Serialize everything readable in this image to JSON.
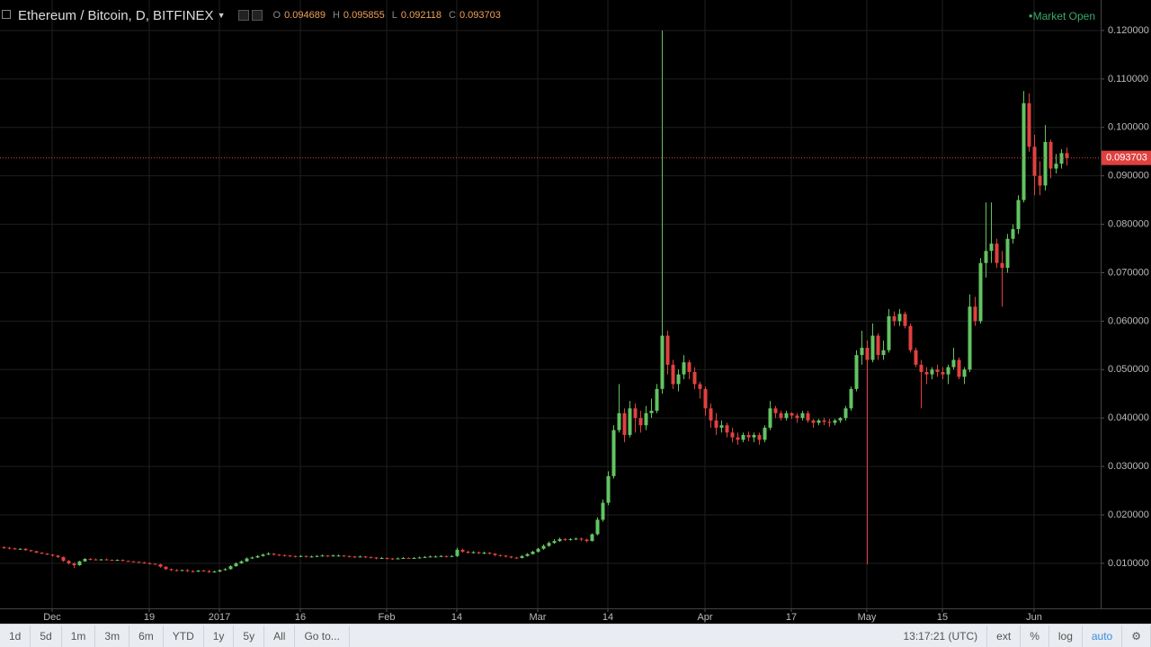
{
  "chart_data": {
    "type": "candlestick",
    "title": "Ethereum / Bitcoin, D, BITFINEX",
    "ohlc_labels": [
      "O",
      "H",
      "L",
      "C"
    ],
    "status": "Market Open",
    "up_color": "#62c462",
    "down_color": "#e0413f",
    "last_price_color": "#e0413f",
    "grid": true,
    "ylim": [
      0.0007,
      0.1263
    ],
    "yticks": [
      {
        "value": 0.01,
        "label": "0.010000"
      },
      {
        "value": 0.02,
        "label": "0.020000"
      },
      {
        "value": 0.03,
        "label": "0.030000"
      },
      {
        "value": 0.04,
        "label": "0.040000"
      },
      {
        "value": 0.05,
        "label": "0.050000"
      },
      {
        "value": 0.06,
        "label": "0.060000"
      },
      {
        "value": 0.07,
        "label": "0.070000"
      },
      {
        "value": 0.08,
        "label": "0.080000"
      },
      {
        "value": 0.09,
        "label": "0.090000"
      },
      {
        "value": 0.1,
        "label": "0.100000"
      },
      {
        "value": 0.11,
        "label": "0.110000"
      },
      {
        "value": 0.12,
        "label": "0.120000"
      }
    ],
    "categories": [
      null,
      null,
      null,
      null,
      null,
      null,
      null,
      null,
      null,
      "Dec",
      null,
      null,
      null,
      null,
      null,
      null,
      null,
      null,
      null,
      null,
      null,
      null,
      null,
      null,
      null,
      null,
      null,
      "19",
      null,
      null,
      null,
      null,
      null,
      null,
      null,
      null,
      null,
      null,
      null,
      null,
      "2017",
      null,
      null,
      null,
      null,
      null,
      null,
      null,
      null,
      null,
      null,
      null,
      null,
      null,
      null,
      "16",
      null,
      null,
      null,
      null,
      null,
      null,
      null,
      null,
      null,
      null,
      null,
      null,
      null,
      null,
      null,
      "Feb",
      null,
      null,
      null,
      null,
      null,
      null,
      null,
      null,
      null,
      null,
      null,
      null,
      "14",
      null,
      null,
      null,
      null,
      null,
      null,
      null,
      null,
      null,
      null,
      null,
      null,
      null,
      null,
      "Mar",
      null,
      null,
      null,
      null,
      null,
      null,
      null,
      null,
      null,
      null,
      null,
      null,
      "14",
      null,
      null,
      null,
      null,
      null,
      null,
      null,
      null,
      null,
      null,
      null,
      null,
      null,
      null,
      null,
      null,
      null,
      "Apr",
      null,
      null,
      null,
      null,
      null,
      null,
      null,
      null,
      null,
      null,
      null,
      null,
      null,
      null,
      null,
      "17",
      null,
      null,
      null,
      null,
      null,
      null,
      null,
      null,
      null,
      null,
      null,
      null,
      null,
      "May",
      null,
      null,
      null,
      null,
      null,
      null,
      null,
      null,
      null,
      null,
      null,
      null,
      null,
      "15",
      null,
      null,
      null,
      null,
      null,
      null,
      null,
      null,
      null,
      null,
      null,
      null,
      null,
      null,
      null,
      null,
      "Jun",
      null,
      null,
      null,
      null,
      null,
      null
    ],
    "open": [
      0.0133,
      0.0132,
      0.0131,
      0.0129,
      0.013,
      0.0127,
      0.0125,
      0.0122,
      0.012,
      0.0118,
      0.0116,
      0.0113,
      0.0105,
      0.01,
      0.0096,
      0.0104,
      0.0109,
      0.0108,
      0.0107,
      0.0108,
      0.0107,
      0.0106,
      0.0107,
      0.0105,
      0.0104,
      0.0103,
      0.0102,
      0.01,
      0.0099,
      0.0098,
      0.0093,
      0.0088,
      0.0086,
      0.0085,
      0.0086,
      0.0084,
      0.0083,
      0.0085,
      0.0084,
      0.0082,
      0.0083,
      0.0086,
      0.0088,
      0.0094,
      0.01,
      0.0104,
      0.011,
      0.0112,
      0.0115,
      0.0118,
      0.012,
      0.0118,
      0.0117,
      0.0116,
      0.0115,
      0.0114,
      0.0115,
      0.0114,
      0.0114,
      0.0115,
      0.0116,
      0.0115,
      0.0116,
      0.0116,
      0.0115,
      0.0114,
      0.0113,
      0.0114,
      0.0113,
      0.0112,
      0.011,
      0.0111,
      0.011,
      0.0109,
      0.011,
      0.0111,
      0.011,
      0.0111,
      0.0112,
      0.0113,
      0.0114,
      0.0114,
      0.0115,
      0.0114,
      0.0115,
      0.0128,
      0.0124,
      0.0122,
      0.0123,
      0.0121,
      0.0122,
      0.012,
      0.0117,
      0.0116,
      0.0114,
      0.0112,
      0.0111,
      0.0115,
      0.0119,
      0.0124,
      0.013,
      0.0136,
      0.0142,
      0.0146,
      0.015,
      0.0149,
      0.015,
      0.0151,
      0.0149,
      0.0146,
      0.016,
      0.019,
      0.0225,
      0.028,
      0.0375,
      0.041,
      0.0365,
      0.042,
      0.04,
      0.0385,
      0.041,
      0.0415,
      0.046,
      0.057,
      0.051,
      0.047,
      0.049,
      0.0515,
      0.0495,
      0.047,
      0.046,
      0.042,
      0.0395,
      0.038,
      0.0385,
      0.037,
      0.036,
      0.0355,
      0.0365,
      0.036,
      0.0365,
      0.0355,
      0.038,
      0.042,
      0.041,
      0.04,
      0.041,
      0.0405,
      0.04,
      0.041,
      0.0395,
      0.039,
      0.0395,
      0.0392,
      0.039,
      0.0395,
      0.04,
      0.042,
      0.046,
      0.053,
      0.0545,
      0.052,
      0.057,
      0.053,
      0.054,
      0.061,
      0.06,
      0.0615,
      0.059,
      0.054,
      0.051,
      0.0495,
      0.049,
      0.05,
      0.0495,
      0.049,
      0.0505,
      0.052,
      0.0485,
      0.05,
      0.063,
      0.06,
      0.072,
      0.0745,
      0.076,
      0.072,
      0.071,
      0.077,
      0.079,
      0.085,
      0.105,
      0.096,
      0.09,
      0.088,
      0.097,
      0.0915,
      0.0925,
      0.094689
    ],
    "high": [
      0.0135,
      0.0134,
      0.0132,
      0.0131,
      0.0131,
      0.0128,
      0.0126,
      0.0123,
      0.0121,
      0.0119,
      0.0117,
      0.0114,
      0.0107,
      0.0102,
      0.0105,
      0.0111,
      0.0111,
      0.011,
      0.0109,
      0.011,
      0.0108,
      0.0108,
      0.0108,
      0.0106,
      0.0105,
      0.0104,
      0.0103,
      0.0102,
      0.01,
      0.0099,
      0.0094,
      0.0089,
      0.0088,
      0.0087,
      0.0088,
      0.0086,
      0.0086,
      0.0087,
      0.0086,
      0.0085,
      0.0087,
      0.009,
      0.0096,
      0.0102,
      0.0106,
      0.0112,
      0.0114,
      0.0117,
      0.012,
      0.0123,
      0.0121,
      0.0119,
      0.0118,
      0.0117,
      0.0116,
      0.0117,
      0.0116,
      0.0116,
      0.0117,
      0.0118,
      0.0117,
      0.0118,
      0.0118,
      0.0117,
      0.0116,
      0.0115,
      0.0116,
      0.0115,
      0.0114,
      0.0113,
      0.0113,
      0.0112,
      0.0111,
      0.0112,
      0.0113,
      0.0112,
      0.0113,
      0.0114,
      0.0115,
      0.0116,
      0.0116,
      0.0117,
      0.0116,
      0.0117,
      0.0132,
      0.013,
      0.0126,
      0.0125,
      0.0124,
      0.0124,
      0.0123,
      0.0121,
      0.0118,
      0.0117,
      0.0115,
      0.0113,
      0.0117,
      0.0121,
      0.0126,
      0.0132,
      0.0139,
      0.0145,
      0.015,
      0.0153,
      0.0152,
      0.0152,
      0.0153,
      0.0153,
      0.0151,
      0.0162,
      0.0195,
      0.0232,
      0.029,
      0.0385,
      0.047,
      0.042,
      0.0435,
      0.043,
      0.0415,
      0.0425,
      0.044,
      0.047,
      0.12,
      0.058,
      0.052,
      0.05,
      0.053,
      0.052,
      0.0505,
      0.0475,
      0.0465,
      0.043,
      0.041,
      0.0395,
      0.039,
      0.038,
      0.037,
      0.037,
      0.0372,
      0.037,
      0.037,
      0.0385,
      0.0435,
      0.0425,
      0.0415,
      0.0415,
      0.0412,
      0.041,
      0.0415,
      0.0415,
      0.0398,
      0.0398,
      0.04,
      0.0398,
      0.0398,
      0.0402,
      0.0425,
      0.0465,
      0.054,
      0.058,
      0.056,
      0.0595,
      0.0575,
      0.056,
      0.0625,
      0.062,
      0.0625,
      0.062,
      0.0595,
      0.0545,
      0.052,
      0.0505,
      0.0505,
      0.051,
      0.0505,
      0.051,
      0.0545,
      0.0525,
      0.0505,
      0.0655,
      0.065,
      0.073,
      0.0845,
      0.0845,
      0.077,
      0.0745,
      0.078,
      0.08,
      0.086,
      0.1075,
      0.107,
      0.0985,
      0.093,
      0.1005,
      0.0975,
      0.0945,
      0.0955,
      0.095855
    ],
    "low": [
      0.013,
      0.0129,
      0.0128,
      0.0128,
      0.0126,
      0.0124,
      0.0121,
      0.0119,
      0.0117,
      0.0114,
      0.0111,
      0.0103,
      0.0098,
      0.009,
      0.0095,
      0.0103,
      0.0106,
      0.0106,
      0.0106,
      0.0106,
      0.0105,
      0.0105,
      0.0104,
      0.0103,
      0.0102,
      0.0101,
      0.0099,
      0.0098,
      0.0097,
      0.0091,
      0.0086,
      0.0084,
      0.0083,
      0.0084,
      0.0082,
      0.0081,
      0.0082,
      0.0083,
      0.008,
      0.0081,
      0.0082,
      0.0085,
      0.0087,
      0.0093,
      0.0099,
      0.0103,
      0.0109,
      0.0111,
      0.0114,
      0.0117,
      0.0116,
      0.0115,
      0.0114,
      0.0113,
      0.0112,
      0.0113,
      0.0112,
      0.0112,
      0.0113,
      0.0114,
      0.0113,
      0.0114,
      0.0114,
      0.0113,
      0.0112,
      0.0111,
      0.0112,
      0.0111,
      0.011,
      0.0108,
      0.0109,
      0.0108,
      0.0107,
      0.0108,
      0.0109,
      0.0109,
      0.0109,
      0.011,
      0.0111,
      0.0112,
      0.0112,
      0.0113,
      0.0112,
      0.0113,
      0.0113,
      0.0122,
      0.012,
      0.012,
      0.0119,
      0.0119,
      0.0118,
      0.0115,
      0.0114,
      0.0112,
      0.011,
      0.0109,
      0.011,
      0.0114,
      0.0118,
      0.0122,
      0.0128,
      0.0134,
      0.014,
      0.0144,
      0.0146,
      0.0147,
      0.0148,
      0.0146,
      0.0143,
      0.0145,
      0.0158,
      0.0186,
      0.022,
      0.0275,
      0.037,
      0.035,
      0.036,
      0.037,
      0.037,
      0.0375,
      0.04,
      0.041,
      0.045,
      0.049,
      0.046,
      0.0455,
      0.048,
      0.048,
      0.046,
      0.044,
      0.0405,
      0.038,
      0.0365,
      0.037,
      0.036,
      0.035,
      0.0345,
      0.035,
      0.0352,
      0.035,
      0.0345,
      0.035,
      0.0375,
      0.04,
      0.0395,
      0.0395,
      0.0398,
      0.039,
      0.0395,
      0.039,
      0.038,
      0.0385,
      0.0385,
      0.0382,
      0.0385,
      0.039,
      0.0395,
      0.0415,
      0.0455,
      0.051,
      0.0098,
      0.0515,
      0.052,
      0.052,
      0.0535,
      0.059,
      0.059,
      0.0585,
      0.0535,
      0.0505,
      0.042,
      0.047,
      0.048,
      0.0485,
      0.048,
      0.047,
      0.05,
      0.048,
      0.047,
      0.0495,
      0.059,
      0.0595,
      0.069,
      0.072,
      0.071,
      0.063,
      0.07,
      0.076,
      0.078,
      0.0845,
      0.095,
      0.086,
      0.086,
      0.087,
      0.0895,
      0.0905,
      0.0915,
      0.092118
    ],
    "close": [
      0.0132,
      0.0131,
      0.0129,
      0.013,
      0.0127,
      0.0125,
      0.0122,
      0.012,
      0.0118,
      0.0116,
      0.0113,
      0.0105,
      0.01,
      0.0096,
      0.0104,
      0.0109,
      0.0108,
      0.0107,
      0.0108,
      0.0107,
      0.0106,
      0.0107,
      0.0105,
      0.0104,
      0.0103,
      0.0102,
      0.01,
      0.0099,
      0.0098,
      0.0093,
      0.0088,
      0.0086,
      0.0085,
      0.0086,
      0.0084,
      0.0083,
      0.0085,
      0.0084,
      0.0082,
      0.0083,
      0.0086,
      0.0088,
      0.0094,
      0.01,
      0.0104,
      0.011,
      0.0112,
      0.0115,
      0.0118,
      0.012,
      0.0118,
      0.0117,
      0.0116,
      0.0115,
      0.0114,
      0.0115,
      0.0114,
      0.0114,
      0.0115,
      0.0116,
      0.0115,
      0.0116,
      0.0116,
      0.0115,
      0.0114,
      0.0113,
      0.0114,
      0.0113,
      0.0112,
      0.011,
      0.0111,
      0.011,
      0.0109,
      0.011,
      0.0111,
      0.011,
      0.0111,
      0.0112,
      0.0113,
      0.0114,
      0.0114,
      0.0115,
      0.0114,
      0.0115,
      0.0128,
      0.0124,
      0.0122,
      0.0123,
      0.0121,
      0.0122,
      0.012,
      0.0117,
      0.0116,
      0.0114,
      0.0112,
      0.0111,
      0.0115,
      0.0119,
      0.0124,
      0.013,
      0.0136,
      0.0142,
      0.0146,
      0.015,
      0.0149,
      0.015,
      0.0151,
      0.0149,
      0.0146,
      0.016,
      0.019,
      0.0225,
      0.028,
      0.0375,
      0.041,
      0.0365,
      0.042,
      0.04,
      0.0385,
      0.041,
      0.0415,
      0.046,
      0.057,
      0.051,
      0.047,
      0.049,
      0.0515,
      0.0495,
      0.047,
      0.046,
      0.042,
      0.0395,
      0.038,
      0.0385,
      0.037,
      0.036,
      0.0355,
      0.0365,
      0.036,
      0.0365,
      0.0355,
      0.038,
      0.042,
      0.041,
      0.04,
      0.041,
      0.0405,
      0.04,
      0.041,
      0.0395,
      0.039,
      0.0395,
      0.0392,
      0.039,
      0.0395,
      0.04,
      0.042,
      0.046,
      0.053,
      0.0545,
      0.052,
      0.057,
      0.053,
      0.054,
      0.061,
      0.06,
      0.0615,
      0.059,
      0.054,
      0.051,
      0.0495,
      0.049,
      0.05,
      0.0495,
      0.049,
      0.0505,
      0.052,
      0.0485,
      0.05,
      0.063,
      0.06,
      0.072,
      0.0745,
      0.076,
      0.072,
      0.071,
      0.077,
      0.079,
      0.085,
      0.105,
      0.096,
      0.09,
      0.088,
      0.097,
      0.0915,
      0.0925,
      0.094689,
      0.093703
    ]
  },
  "toolbar": {
    "ranges": [
      "1d",
      "5d",
      "1m",
      "3m",
      "6m",
      "YTD",
      "1y",
      "5y",
      "All"
    ],
    "goto": "Go to...",
    "time": "13:17:21 (UTC)",
    "options": [
      "ext",
      "%",
      "log",
      "auto"
    ]
  }
}
